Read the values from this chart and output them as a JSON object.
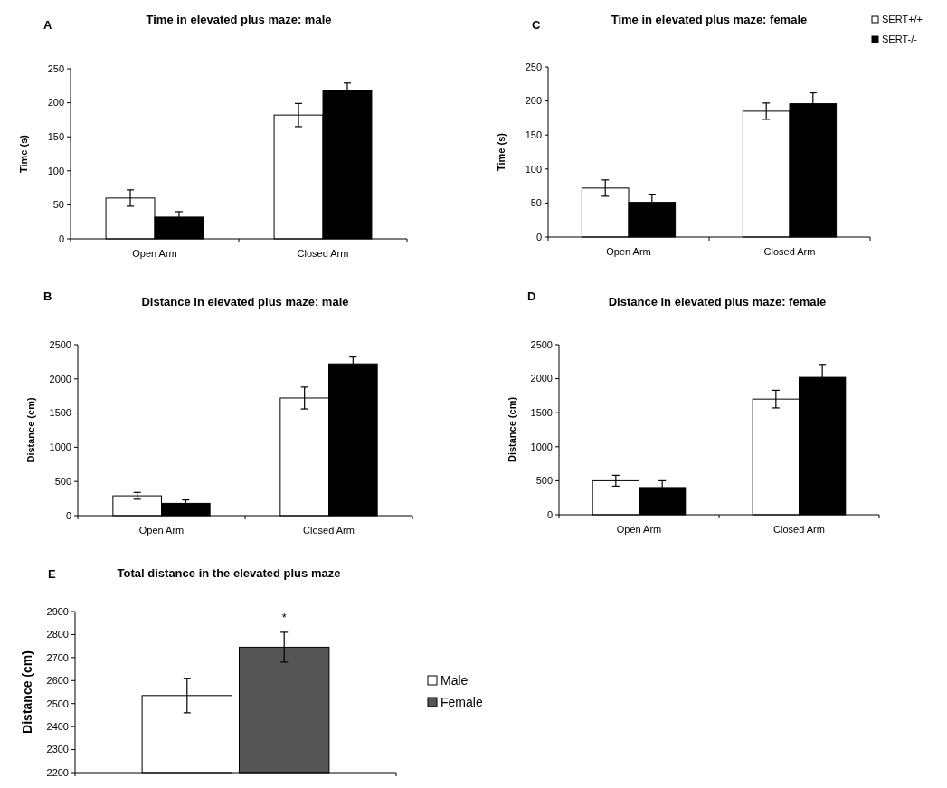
{
  "chart_data": [
    {
      "type": "bar",
      "title": "Time in elevated plus maze: male",
      "ylabel": "Time (s)",
      "annotations": [
        "A"
      ],
      "categories": [
        "Open Arm",
        "Closed Arm"
      ],
      "ylim": [
        0,
        250
      ],
      "yticks": [
        0,
        50,
        100,
        150,
        200,
        250
      ],
      "series": [
        {
          "color": "#ffffff",
          "values": [
            60,
            182
          ],
          "errors": [
            12,
            17
          ]
        },
        {
          "color": "#000000",
          "values": [
            32,
            218
          ],
          "errors": [
            8,
            11
          ]
        }
      ]
    },
    {
      "type": "bar",
      "title": "Time in elevated plus maze: female",
      "ylabel": "Time (s)",
      "annotations": [
        "C"
      ],
      "categories": [
        "Open Arm",
        "Closed Arm"
      ],
      "ylim": [
        0,
        250
      ],
      "yticks": [
        0,
        50,
        100,
        150,
        200,
        250
      ],
      "legend": "top right",
      "series": [
        {
          "name": "SERT+/+",
          "color": "#ffffff",
          "values": [
            72,
            185
          ],
          "errors": [
            12,
            12
          ]
        },
        {
          "name": "SERT-/-",
          "color": "#000000",
          "values": [
            51,
            196
          ],
          "errors": [
            12,
            16
          ]
        }
      ]
    },
    {
      "type": "bar",
      "title": "Distance in elevated plus maze: male",
      "ylabel": "Distance (cm)",
      "annotations": [
        "B"
      ],
      "categories": [
        "Open Arm",
        "Closed Arm"
      ],
      "ylim": [
        0,
        2500
      ],
      "yticks": [
        0,
        500,
        1000,
        1500,
        2000,
        2500
      ],
      "series": [
        {
          "color": "#ffffff",
          "values": [
            290,
            1720
          ],
          "errors": [
            50,
            160
          ]
        },
        {
          "color": "#000000",
          "values": [
            180,
            2220
          ],
          "errors": [
            50,
            100
          ]
        }
      ]
    },
    {
      "type": "bar",
      "title": "Distance in elevated plus maze: female",
      "ylabel": "Distance (cm)",
      "annotations": [
        "D"
      ],
      "categories": [
        "Open Arm",
        "Closed Arm"
      ],
      "ylim": [
        0,
        2500
      ],
      "yticks": [
        0,
        500,
        1000,
        1500,
        2000,
        2500
      ],
      "series": [
        {
          "color": "#ffffff",
          "values": [
            500,
            1700
          ],
          "errors": [
            80,
            130
          ]
        },
        {
          "color": "#000000",
          "values": [
            400,
            2020
          ],
          "errors": [
            100,
            190
          ]
        }
      ]
    },
    {
      "type": "bar",
      "title": "Total distance in the elevated plus maze",
      "ylabel": "Distance (cm)",
      "annotations": [
        "E",
        "*"
      ],
      "categories": [
        null
      ],
      "ylim": [
        2200,
        2900
      ],
      "yticks": [
        2200,
        2300,
        2400,
        2500,
        2600,
        2700,
        2800,
        2900
      ],
      "legend": "right",
      "series": [
        {
          "name": "Male",
          "color": "#ffffff",
          "values": [
            2535
          ],
          "errors": [
            75
          ]
        },
        {
          "name": "Female",
          "color": "#555555",
          "values": [
            2745
          ],
          "errors": [
            65
          ]
        }
      ]
    }
  ]
}
